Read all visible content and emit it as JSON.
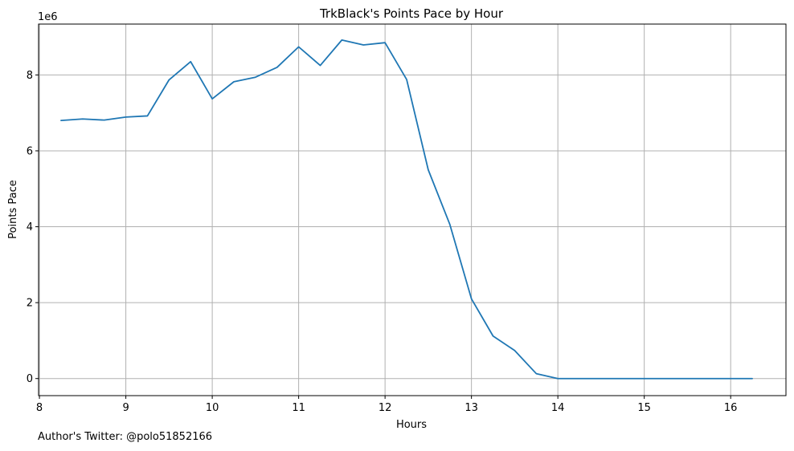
{
  "chart_data": {
    "type": "line",
    "title": "TrkBlack's Points Pace by Hour",
    "xlabel": "Hours",
    "ylabel": "Points Pace",
    "y_offset_label": "1e6",
    "xlim": [
      7.99,
      16.64
    ],
    "ylim": [
      -450000,
      9340000
    ],
    "x_ticks": [
      8,
      9,
      10,
      11,
      12,
      13,
      14,
      15,
      16
    ],
    "y_ticks": [
      0,
      2000000,
      4000000,
      6000000,
      8000000
    ],
    "y_tick_labels": [
      "0",
      "2",
      "4",
      "6",
      "8"
    ],
    "grid": true,
    "series": [
      {
        "color": "#1f77b4",
        "x": [
          8.25,
          8.5,
          8.75,
          9.0,
          9.25,
          9.5,
          9.75,
          10.0,
          10.25,
          10.5,
          10.75,
          11.0,
          11.25,
          11.5,
          11.75,
          12.0,
          12.25,
          12.5,
          12.75,
          13.0,
          13.25,
          13.5,
          13.75,
          14.0,
          14.25,
          14.5,
          14.75,
          15.0,
          15.25,
          15.5,
          15.75,
          16.0,
          16.25
        ],
        "y": [
          6800000,
          6840000,
          6810000,
          6890000,
          6920000,
          7870000,
          8350000,
          7370000,
          7820000,
          7940000,
          8200000,
          8740000,
          8250000,
          8920000,
          8790000,
          8850000,
          7880000,
          5500000,
          4060000,
          2100000,
          1120000,
          740000,
          130000,
          0,
          0,
          0,
          0,
          0,
          0,
          0,
          0,
          0,
          0
        ]
      }
    ]
  },
  "footer": {
    "text": "Author's Twitter: @polo51852166"
  }
}
